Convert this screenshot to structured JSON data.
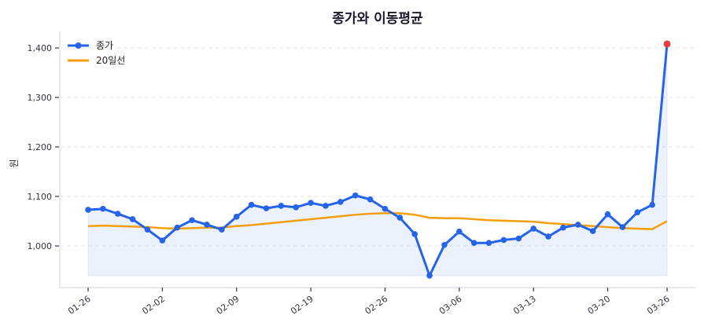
{
  "chart_data": {
    "type": "line",
    "title": "종가와 이동평균",
    "xlabel": "",
    "ylabel": "원",
    "ylim": [
      920,
      1430
    ],
    "yticks": [
      1000,
      1100,
      1200,
      1300,
      1400
    ],
    "ytick_labels": [
      "1,000",
      "1,100",
      "1,200",
      "1,300",
      "1,400"
    ],
    "grid": true,
    "legend_position": "upper left",
    "xtick_indices": [
      0,
      5,
      10,
      15,
      20,
      25,
      30,
      35,
      39
    ],
    "xtick_labels": [
      "01-26",
      "02-02",
      "02-09",
      "02-19",
      "02-26",
      "03-06",
      "03-13",
      "03-20",
      "03-26"
    ],
    "series": [
      {
        "name": "종가",
        "color": "#2563eb",
        "marker": "circle",
        "fill": true,
        "fill_color": "#2563eb",
        "highlight_last_color": "#e53e3e",
        "values": [
          1073,
          1075,
          1065,
          1054,
          1033,
          1011,
          1037,
          1052,
          1043,
          1033,
          1059,
          1083,
          1076,
          1081,
          1078,
          1087,
          1081,
          1089,
          1102,
          1094,
          1075,
          1057,
          1024,
          940,
          1002,
          1029,
          1006,
          1006,
          1012,
          1015,
          1035,
          1019,
          1037,
          1043,
          1030,
          1064,
          1038,
          1068,
          1083,
          1408
        ]
      },
      {
        "name": "20일선",
        "color": "#f59e0b",
        "marker": "none",
        "fill": false,
        "values": [
          1040,
          1041,
          1040,
          1039,
          1038,
          1036,
          1035,
          1036,
          1037,
          1037,
          1040,
          1042,
          1045,
          1048,
          1051,
          1054,
          1057,
          1060,
          1063,
          1065,
          1066,
          1066,
          1063,
          1057,
          1056,
          1056,
          1054,
          1052,
          1051,
          1050,
          1049,
          1046,
          1044,
          1042,
          1040,
          1038,
          1036,
          1035,
          1034,
          1050
        ]
      }
    ]
  },
  "legend": {
    "items": [
      {
        "label": "종가"
      },
      {
        "label": "20일선"
      }
    ]
  }
}
